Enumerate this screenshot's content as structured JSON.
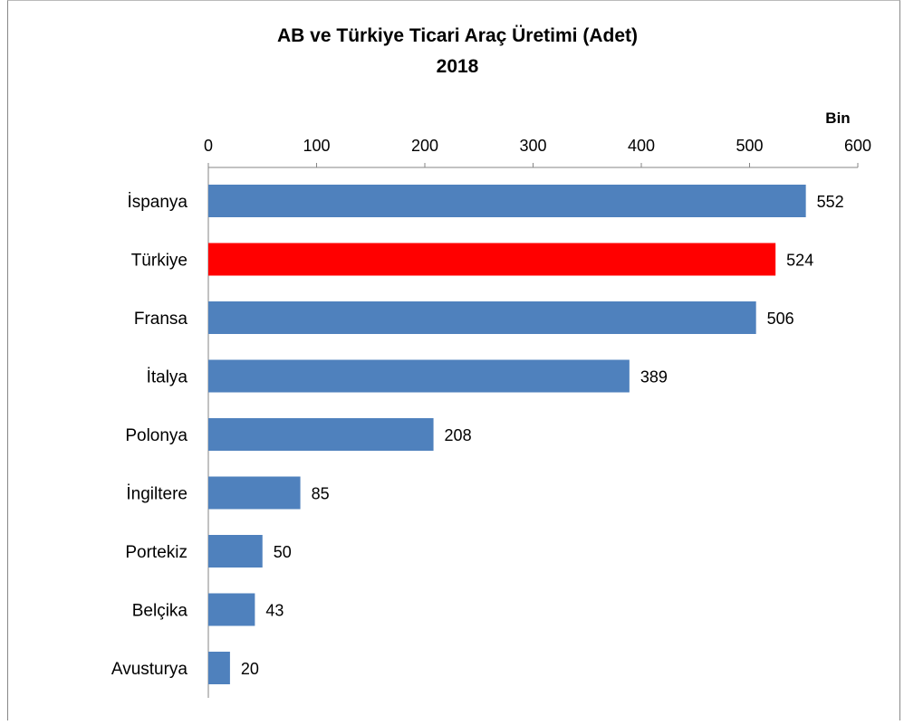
{
  "chart_data": {
    "type": "bar",
    "orientation": "horizontal",
    "title": "AB ve Türkiye Ticari Araç Üretimi (Adet)",
    "subtitle": "2018",
    "unit_label": "Bin",
    "categories": [
      "İspanya",
      "Türkiye",
      "Fransa",
      "İtalya",
      "Polonya",
      "İngiltere",
      "Portekiz",
      "Belçika",
      "Avusturya"
    ],
    "values": [
      552,
      524,
      506,
      389,
      208,
      85,
      50,
      43,
      20
    ],
    "data_labels": [
      "552",
      "524",
      "506",
      "389",
      "208",
      "85",
      "50",
      "43",
      "20"
    ],
    "xlim": [
      0,
      600
    ],
    "xticks": [
      0,
      100,
      200,
      300,
      400,
      500,
      600
    ],
    "axis_position": "top",
    "grid": false,
    "legend": "none",
    "colors": {
      "default": "#4F81BD",
      "highlight": "#FF0000",
      "highlight_category": "Türkiye"
    }
  }
}
